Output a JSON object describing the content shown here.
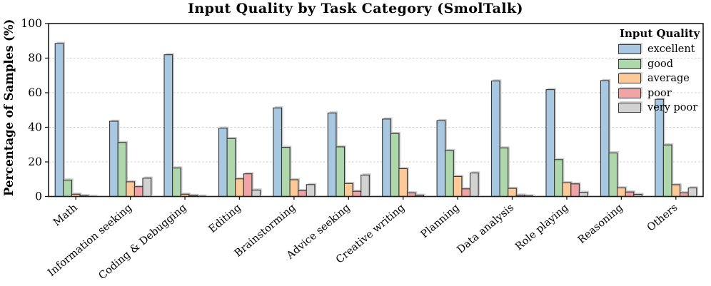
{
  "chart_data": {
    "type": "bar",
    "title": "Input Quality by Task Category (SmolTalk)",
    "ylabel": "Percentage of Samples (%)",
    "xlabel": "",
    "legend_title": "Input Quality",
    "legend_position": "upper right",
    "grid": "horizontal dashed",
    "ylim": [
      0,
      100
    ],
    "yticks": [
      0,
      20,
      40,
      60,
      80,
      100
    ],
    "bar_edge_color": "#333333",
    "bar_shadow_color": "#c9c9c9",
    "categories": [
      "Math",
      "Information seeking",
      "Coding & Debugging",
      "Editing",
      "Brainstorming",
      "Advice seeking",
      "Creative writing",
      "Planning",
      "Data analysis",
      "Role playing",
      "Reasoning",
      "Others"
    ],
    "series": [
      {
        "name": "excellent",
        "color": "#a8c8e1",
        "values": [
          88.5,
          43.5,
          82.0,
          39.5,
          51.2,
          48.3,
          44.8,
          43.9,
          66.8,
          61.8,
          67.0,
          56.2
        ]
      },
      {
        "name": "good",
        "color": "#aed8ab",
        "values": [
          9.5,
          31.2,
          16.5,
          33.5,
          28.4,
          28.7,
          36.4,
          26.6,
          28.1,
          21.3,
          25.2,
          29.8
        ]
      },
      {
        "name": "average",
        "color": "#fdc998",
        "values": [
          1.3,
          8.5,
          1.3,
          10.2,
          9.7,
          7.5,
          16.1,
          11.6,
          4.7,
          8.0,
          5.0,
          6.8
        ]
      },
      {
        "name": "poor",
        "color": "#f0a3a4",
        "values": [
          0.5,
          5.7,
          0.6,
          13.1,
          3.4,
          3.0,
          2.1,
          4.4,
          0.8,
          7.3,
          2.6,
          2.1
        ]
      },
      {
        "name": "very poor",
        "color": "#d2d2d2",
        "values": [
          0.2,
          10.6,
          0.3,
          3.7,
          6.9,
          12.4,
          0.7,
          13.6,
          0.4,
          2.4,
          1.2,
          5.0
        ]
      }
    ]
  }
}
